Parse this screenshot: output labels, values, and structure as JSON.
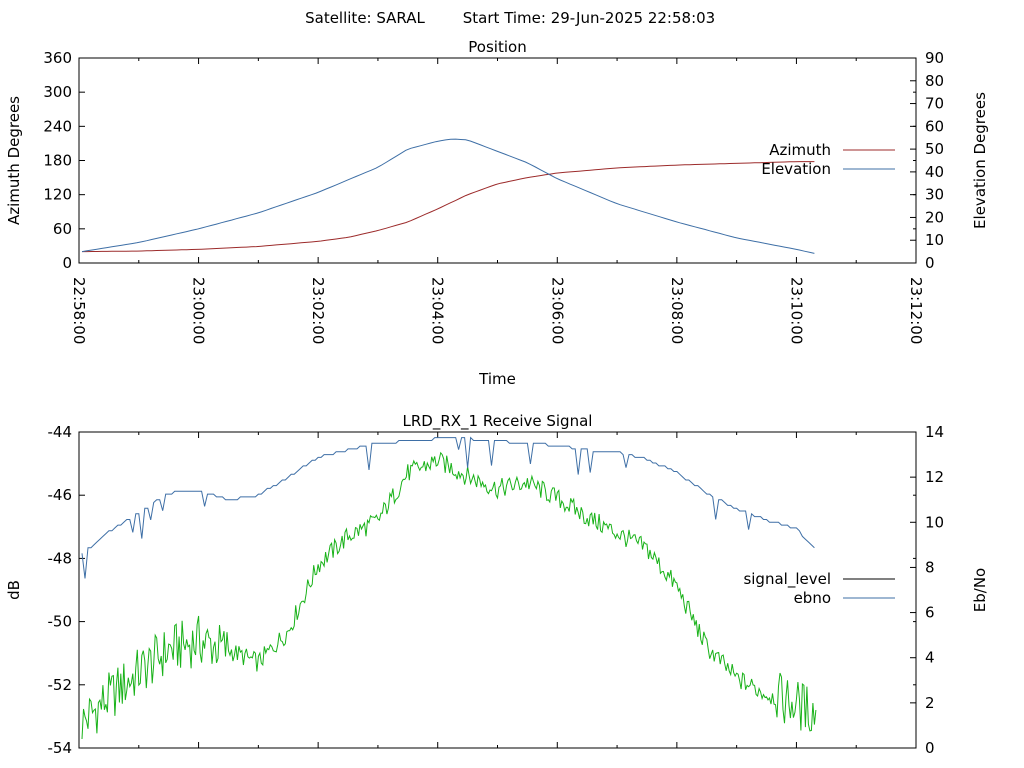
{
  "header": {
    "satellite_label": "Satellite: SARAL",
    "start_time_label": "Start Time: 29-Jun-2025 22:58:03"
  },
  "colors": {
    "azimuth": "#9c2b2b",
    "elevation": "#3e6fa6",
    "signal_level": "#000000",
    "ebno": "#3e6fa6",
    "signal_trace": "#19b219",
    "axis": "#000000"
  },
  "chart_data": [
    {
      "type": "line",
      "title": "Position",
      "xlabel": "Time",
      "ylabel": "Azimuth Degrees",
      "y2label": "Elevation Degrees",
      "xlim": [
        "22:58:00",
        "23:12:00"
      ],
      "ylim": [
        0,
        360
      ],
      "y2lim": [
        0,
        90
      ],
      "x_ticks": [
        "22:58:00",
        "23:00:00",
        "23:02:00",
        "23:04:00",
        "23:06:00",
        "23:08:00",
        "23:10:00",
        "23:12:00"
      ],
      "y_ticks": [
        "0",
        "60",
        "120",
        "180",
        "240",
        "300",
        "360"
      ],
      "y2_ticks": [
        "0",
        "10",
        "20",
        "30",
        "40",
        "50",
        "60",
        "70",
        "80",
        "90"
      ],
      "legend_position": "right",
      "grid": false,
      "series": [
        {
          "name": "Azimuth",
          "axis": "left",
          "x": [
            "22:58:03",
            "22:59:00",
            "23:00:00",
            "23:01:00",
            "23:02:00",
            "23:02:30",
            "23:03:00",
            "23:03:30",
            "23:04:00",
            "23:04:30",
            "23:05:00",
            "23:05:30",
            "23:06:00",
            "23:07:00",
            "23:08:00",
            "23:09:00",
            "23:10:00",
            "23:10:20"
          ],
          "values": [
            20,
            21,
            24,
            29,
            38,
            45,
            57,
            72,
            95,
            120,
            139,
            150,
            158,
            167,
            172,
            175,
            178,
            178
          ]
        },
        {
          "name": "Elevation",
          "axis": "right",
          "x": [
            "22:58:03",
            "22:59:00",
            "23:00:00",
            "23:01:00",
            "23:02:00",
            "23:03:00",
            "23:03:30",
            "23:04:00",
            "23:04:15",
            "23:04:30",
            "23:05:00",
            "23:05:30",
            "23:06:00",
            "23:07:00",
            "23:08:00",
            "23:09:00",
            "23:10:00",
            "23:10:20"
          ],
          "values": [
            5,
            9,
            15,
            22,
            31,
            42,
            50,
            53.5,
            54.5,
            54,
            49,
            44,
            37,
            26,
            18,
            11,
            6,
            4
          ]
        }
      ]
    },
    {
      "type": "line",
      "title": "LRD_RX_1 Receive Signal",
      "ylabel": "dB",
      "y2label": "Eb/No",
      "xlim": [
        "22:58:00",
        "23:12:00"
      ],
      "ylim": [
        -54,
        -44
      ],
      "y2lim": [
        0,
        14
      ],
      "y_ticks": [
        "-54",
        "-52",
        "-50",
        "-48",
        "-46",
        "-44"
      ],
      "y2_ticks": [
        "0",
        "2",
        "4",
        "6",
        "8",
        "10",
        "12",
        "14"
      ],
      "legend_position": "right",
      "grid": false,
      "series": [
        {
          "name": "signal_level",
          "axis": "left",
          "x": [
            "22:58:03",
            "22:58:30",
            "22:59:00",
            "22:59:30",
            "23:00:00",
            "23:00:30",
            "23:01:00",
            "23:01:30",
            "23:02:00",
            "23:02:30",
            "23:03:00",
            "23:03:30",
            "23:04:00",
            "23:04:30",
            "23:05:00",
            "23:05:30",
            "23:06:00",
            "23:06:30",
            "23:07:00",
            "23:07:30",
            "23:08:00",
            "23:08:30",
            "23:09:00",
            "23:09:30",
            "23:10:00",
            "23:10:20"
          ],
          "values": [
            -53.2,
            -52.4,
            -51.6,
            -50.9,
            -50.6,
            -50.9,
            -51.3,
            -50.3,
            -48.2,
            -47.3,
            -46.8,
            -45.3,
            -44.9,
            -45.4,
            -45.8,
            -45.6,
            -46.1,
            -46.7,
            -47.2,
            -47.7,
            -48.9,
            -50.8,
            -51.8,
            -52.3,
            -52.6,
            -52.9
          ]
        },
        {
          "name": "ebno",
          "axis": "right",
          "x": [
            "22:58:03",
            "22:58:30",
            "22:59:00",
            "22:59:30",
            "23:00:00",
            "23:00:30",
            "23:01:00",
            "23:01:30",
            "23:02:00",
            "23:02:30",
            "23:03:00",
            "23:03:30",
            "23:04:00",
            "23:04:30",
            "23:05:00",
            "23:05:30",
            "23:06:00",
            "23:06:30",
            "23:07:00",
            "23:07:30",
            "23:08:00",
            "23:08:30",
            "23:09:00",
            "23:09:30",
            "23:10:00",
            "23:10:20"
          ],
          "values": [
            8.6,
            9.6,
            10.4,
            11.3,
            11.4,
            11.0,
            11.2,
            12.0,
            12.9,
            13.2,
            13.5,
            13.6,
            13.7,
            13.7,
            13.6,
            13.5,
            13.4,
            13.2,
            13.1,
            12.8,
            12.2,
            11.3,
            10.6,
            10.1,
            9.7,
            8.8
          ]
        }
      ]
    }
  ]
}
